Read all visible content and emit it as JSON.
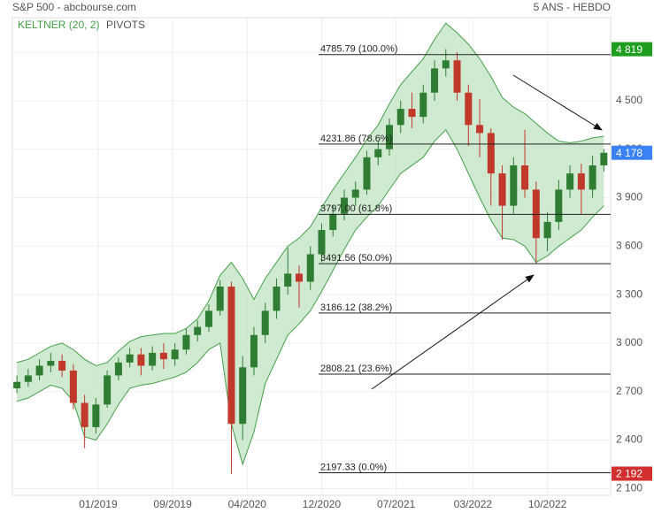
{
  "header": {
    "title": "S&P 500 - abcbourse.com",
    "period": "5 ANS - HEBDO"
  },
  "chart_data": {
    "type": "candlestick",
    "up_color": "#2e7d32",
    "down_color": "#c0392b",
    "x": [
      2,
      7,
      12,
      17,
      22,
      27,
      32,
      37,
      42,
      47,
      52,
      57,
      62,
      67,
      72,
      77,
      82,
      87,
      92,
      97,
      102,
      107,
      112,
      117,
      122,
      127,
      132,
      137,
      142,
      147,
      152,
      157,
      162,
      167,
      172,
      177,
      182,
      187,
      192,
      197,
      202,
      207,
      212,
      217,
      222,
      227,
      232,
      237,
      242,
      247,
      252,
      257,
      262
    ],
    "open": [
      2720,
      2760,
      2800,
      2860,
      2890,
      2830,
      2630,
      2480,
      2620,
      2800,
      2880,
      2930,
      2860,
      2940,
      2900,
      2960,
      3050,
      3100,
      3200,
      3350,
      2500,
      2850,
      3050,
      3200,
      3350,
      3430,
      3380,
      3550,
      3700,
      3800,
      3900,
      3950,
      4150,
      4200,
      4350,
      4450,
      4400,
      4550,
      4700,
      4750,
      4550,
      4350,
      4300,
      4050,
      3850,
      4100,
      3950,
      3650,
      3750,
      3950,
      4050,
      3950,
      4100
    ],
    "high": [
      2800,
      2840,
      2900,
      2940,
      2930,
      2870,
      2680,
      2660,
      2830,
      2910,
      2970,
      2970,
      2980,
      3000,
      3000,
      3090,
      3140,
      3240,
      3390,
      3380,
      2920,
      3100,
      3250,
      3400,
      3590,
      3480,
      3600,
      3740,
      3850,
      3950,
      4000,
      4190,
      4250,
      4390,
      4500,
      4550,
      4600,
      4750,
      4820,
      4800,
      4600,
      4510,
      4330,
      4100,
      4150,
      4320,
      4000,
      3810,
      4010,
      4100,
      4110,
      4160,
      4200
    ],
    "low": [
      2690,
      2730,
      2770,
      2820,
      2790,
      2590,
      2350,
      2440,
      2600,
      2770,
      2850,
      2800,
      2830,
      2840,
      2860,
      2930,
      3010,
      3070,
      3170,
      2190,
      2400,
      2800,
      3000,
      3150,
      3300,
      3220,
      3330,
      3500,
      3660,
      3760,
      3850,
      3920,
      4100,
      4160,
      4300,
      4330,
      4360,
      4500,
      4650,
      4500,
      4220,
      4150,
      3850,
      3640,
      3800,
      3900,
      3490,
      3570,
      3700,
      3900,
      3800,
      3900,
      4060
    ],
    "close": [
      2760,
      2800,
      2860,
      2890,
      2830,
      2630,
      2480,
      2620,
      2800,
      2880,
      2930,
      2860,
      2940,
      2900,
      2960,
      3050,
      3100,
      3200,
      3350,
      2500,
      2850,
      3050,
      3200,
      3350,
      3430,
      3380,
      3550,
      3700,
      3800,
      3900,
      3950,
      4150,
      4200,
      4350,
      4450,
      4400,
      4550,
      4700,
      4750,
      4550,
      4350,
      4300,
      4050,
      3850,
      4100,
      3950,
      3650,
      3750,
      3950,
      4050,
      3950,
      4100,
      4178
    ],
    "keltner": {
      "name": "KELTNER (20, 2)",
      "color": "#43a047",
      "fill": "#c8e6c9",
      "upper": [
        2880,
        2900,
        2940,
        2980,
        3000,
        2960,
        2900,
        2860,
        2880,
        2950,
        3010,
        3040,
        3050,
        3060,
        3060,
        3090,
        3150,
        3260,
        3420,
        3500,
        3400,
        3270,
        3400,
        3500,
        3600,
        3650,
        3720,
        3840,
        3950,
        4050,
        4150,
        4260,
        4350,
        4480,
        4600,
        4680,
        4760,
        4880,
        4980,
        4920,
        4850,
        4760,
        4650,
        4520,
        4460,
        4420,
        4360,
        4300,
        4250,
        4240,
        4250,
        4270,
        4280
      ],
      "lower": [
        2640,
        2660,
        2700,
        2740,
        2720,
        2640,
        2420,
        2400,
        2500,
        2620,
        2720,
        2740,
        2750,
        2770,
        2790,
        2820,
        2880,
        2960,
        3000,
        2500,
        2250,
        2450,
        2750,
        2900,
        3050,
        3120,
        3200,
        3320,
        3450,
        3580,
        3700,
        3780,
        3850,
        3950,
        4050,
        4100,
        4150,
        4250,
        4320,
        4200,
        4050,
        3900,
        3760,
        3650,
        3640,
        3600,
        3500,
        3540,
        3600,
        3650,
        3700,
        3780,
        3850
      ]
    },
    "levels": {
      "name": "PIVOTS",
      "color": "#222",
      "values": [
        4785.79,
        4231.86,
        3797.0,
        3491.56,
        3186.12,
        2808.21,
        2197.33
      ],
      "value_labels": [
        "4785.79 (100.0%)",
        "4231.86 (78.6%)",
        "3797.00 (61.8%)",
        "3491.56 (50.0%)",
        "3186.12 (38.2%)",
        "2808.21 (23.6%)",
        "2197.33 (0.0%)"
      ]
    },
    "price_tags": [
      {
        "value": 4819,
        "label": "4 819",
        "color": "#1e9e1e"
      },
      {
        "value": 4178,
        "label": "4 178",
        "color": "#3b82f6"
      },
      {
        "value": 2192,
        "label": "2 192",
        "color": "#d32f2f"
      }
    ],
    "xlim": [
      0,
      265
    ],
    "xticks": [
      {
        "value": 38,
        "label": "01/2019"
      },
      {
        "value": 71,
        "label": "09/2019"
      },
      {
        "value": 104,
        "label": "04/2020"
      },
      {
        "value": 137,
        "label": "12/2020"
      },
      {
        "value": 170,
        "label": "07/2021"
      },
      {
        "value": 204,
        "label": "03/2022"
      },
      {
        "value": 237,
        "label": "10/2022"
      }
    ],
    "ylim": [
      2058,
      5014
    ],
    "yticks": [
      {
        "value": 2100,
        "label": "2 100"
      },
      {
        "value": 2400,
        "label": "2 400"
      },
      {
        "value": 2700,
        "label": "2 700"
      },
      {
        "value": 3000,
        "label": "3 000"
      },
      {
        "value": 3300,
        "label": "3 300"
      },
      {
        "value": 3600,
        "label": "3 600"
      },
      {
        "value": 3900,
        "label": "3 900"
      },
      {
        "value": 4200,
        "label": "4 200"
      },
      {
        "value": 4500,
        "label": "4 500"
      },
      {
        "value": 4800,
        "label": "4 800"
      }
    ],
    "grid": true
  }
}
